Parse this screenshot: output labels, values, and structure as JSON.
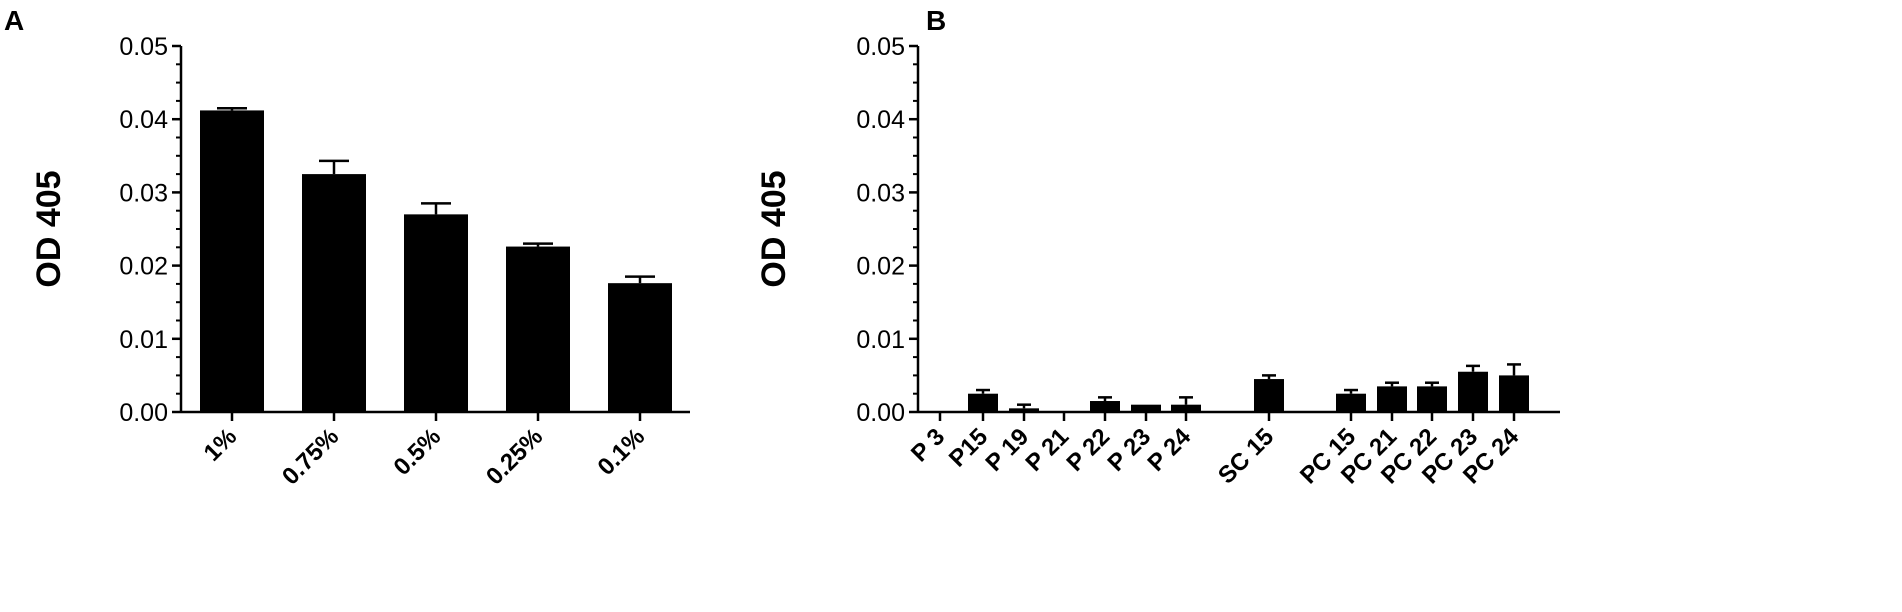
{
  "chart_data": [
    {
      "panel": "A",
      "type": "bar",
      "title": "",
      "xlabel": "",
      "ylabel": "OD 405",
      "ylim": [
        0,
        0.05
      ],
      "yticks": [
        "0.00",
        "0.01",
        "0.02",
        "0.03",
        "0.04",
        "0.05"
      ],
      "grid": false,
      "categories": [
        "1%",
        "0.75%",
        "0.5%",
        "0.25%",
        "0.1%"
      ],
      "values": [
        0.0412,
        0.0325,
        0.027,
        0.0226,
        0.0176
      ],
      "errors": [
        0.0003,
        0.0018,
        0.0015,
        0.0004,
        0.0009
      ]
    },
    {
      "panel": "B",
      "type": "bar",
      "title": "",
      "xlabel": "",
      "ylabel": "OD 405",
      "ylim": [
        0,
        0.05
      ],
      "yticks": [
        "0.00",
        "0.01",
        "0.02",
        "0.03",
        "0.04",
        "0.05"
      ],
      "grid": false,
      "categories": [
        "P 3",
        "P15",
        "P 19",
        "P 21",
        "P 22",
        "P 23",
        "P 24",
        "SC 15",
        "PC 15",
        "PC 21",
        "PC 22",
        "PC 23",
        "PC 24"
      ],
      "values": [
        0.0,
        0.0025,
        0.0005,
        0.0,
        0.0015,
        0.001,
        0.001,
        0.0045,
        0.0025,
        0.0035,
        0.0035,
        0.0055,
        0.005
      ],
      "errors": [
        0.0,
        0.0005,
        0.0005,
        0.0,
        0.0005,
        0.0,
        0.001,
        0.0005,
        0.0005,
        0.0005,
        0.0005,
        0.0008,
        0.0015
      ]
    }
  ]
}
